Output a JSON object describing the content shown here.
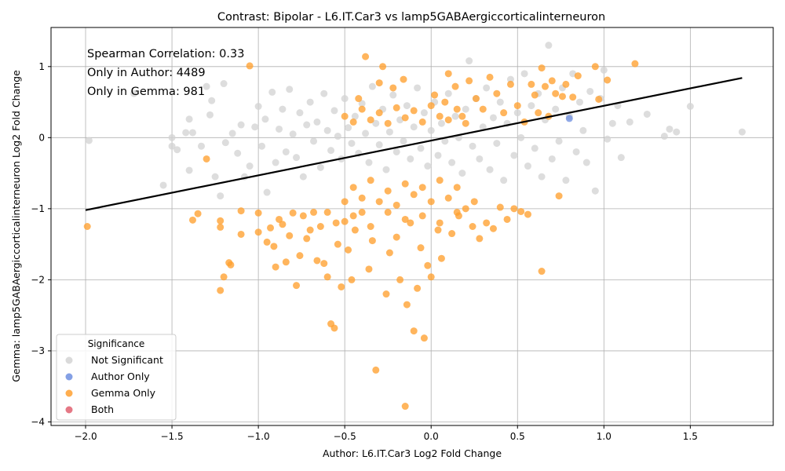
{
  "chart_data": {
    "type": "scatter",
    "title": "Contrast: Bipolar - L6.IT.Car3 vs lamp5GABAergiccorticalinterneuron",
    "xlabel": "Author: L6.IT.Car3 Log2 Fold Change",
    "ylabel": "Gemma: lamp5GABAergiccorticalinterneuron Log2 Fold Change",
    "xlim": [
      -2.2,
      1.98
    ],
    "ylim": [
      -4.05,
      1.55
    ],
    "xticks": [
      "−2.0",
      "−1.5",
      "−1.0",
      "−0.5",
      "0.0",
      "0.5",
      "1.0",
      "1.5"
    ],
    "xtick_values": [
      -2.0,
      -1.5,
      -1.0,
      -0.5,
      0.0,
      0.5,
      1.0,
      1.5
    ],
    "yticks": [
      "−4",
      "−3",
      "−2",
      "−1",
      "0",
      "1"
    ],
    "ytick_values": [
      -4,
      -3,
      -2,
      -1,
      0,
      1
    ],
    "grid": true,
    "annotations": [
      "Spearman Correlation: 0.33",
      "Only in Author: 4489",
      "Only in Gemma: 981"
    ],
    "legend": {
      "title": "Significance",
      "placement": "lower-left",
      "entries": [
        {
          "label": "Not Significant",
          "color": "#d3d3d3"
        },
        {
          "label": "Author Only",
          "color": "#6f8fe0"
        },
        {
          "label": "Gemma Only",
          "color": "#ffa030"
        },
        {
          "label": "Both",
          "color": "#e06070"
        }
      ]
    },
    "regression_line": {
      "x": [
        -2.0,
        1.8
      ],
      "y": [
        -1.02,
        0.84
      ],
      "color": "#000000"
    },
    "series": [
      {
        "name": "Not Significant",
        "color": "#d3d3d3",
        "points": [
          [
            -1.98,
            -0.04
          ],
          [
            -1.72,
            0.62
          ],
          [
            -1.55,
            -0.67
          ],
          [
            -1.5,
            0.0
          ],
          [
            -1.5,
            -0.12
          ],
          [
            -1.47,
            -0.17
          ],
          [
            -1.42,
            0.07
          ],
          [
            -1.4,
            -0.46
          ],
          [
            -1.4,
            0.26
          ],
          [
            -1.38,
            0.07
          ],
          [
            -1.33,
            -0.12
          ],
          [
            -1.3,
            0.72
          ],
          [
            -1.28,
            0.32
          ],
          [
            -1.27,
            0.52
          ],
          [
            -1.25,
            -0.55
          ],
          [
            -1.22,
            -0.82
          ],
          [
            -1.2,
            0.76
          ],
          [
            -1.19,
            -0.07
          ],
          [
            -1.15,
            0.06
          ],
          [
            -1.12,
            -0.22
          ],
          [
            -1.1,
            0.18
          ],
          [
            -1.08,
            -0.55
          ],
          [
            -1.05,
            -0.4
          ],
          [
            -1.02,
            0.15
          ],
          [
            -1.0,
            0.44
          ],
          [
            -0.98,
            -0.12
          ],
          [
            -0.96,
            0.26
          ],
          [
            -0.95,
            -0.77
          ],
          [
            -0.92,
            0.64
          ],
          [
            -0.9,
            -0.35
          ],
          [
            -0.88,
            0.12
          ],
          [
            -0.86,
            0.4
          ],
          [
            -0.84,
            -0.2
          ],
          [
            -0.82,
            0.68
          ],
          [
            -0.8,
            0.05
          ],
          [
            -0.78,
            -0.28
          ],
          [
            -0.76,
            0.35
          ],
          [
            -0.74,
            -0.55
          ],
          [
            -0.72,
            0.18
          ],
          [
            -0.7,
            0.5
          ],
          [
            -0.68,
            -0.05
          ],
          [
            -0.66,
            0.22
          ],
          [
            -0.64,
            -0.42
          ],
          [
            -0.62,
            0.62
          ],
          [
            -0.6,
            0.1
          ],
          [
            -0.58,
            -0.18
          ],
          [
            -0.56,
            0.38
          ],
          [
            -0.54,
            0.02
          ],
          [
            -0.52,
            -0.3
          ],
          [
            -0.5,
            0.55
          ],
          [
            -0.48,
            0.14
          ],
          [
            -0.46,
            -0.08
          ],
          [
            -0.44,
            0.3
          ],
          [
            -0.42,
            -0.22
          ],
          [
            -0.4,
            0.48
          ],
          [
            -0.38,
            0.06
          ],
          [
            -0.36,
            -0.35
          ],
          [
            -0.34,
            0.72
          ],
          [
            -0.32,
            0.2
          ],
          [
            -0.3,
            -0.1
          ],
          [
            -0.28,
            0.4
          ],
          [
            -0.26,
            -0.45
          ],
          [
            -0.24,
            0.08
          ],
          [
            -0.22,
            0.6
          ],
          [
            -0.2,
            -0.2
          ],
          [
            -0.18,
            0.25
          ],
          [
            -0.16,
            -0.05
          ],
          [
            -0.14,
            0.45
          ],
          [
            -0.12,
            -0.3
          ],
          [
            -0.1,
            0.15
          ],
          [
            -0.08,
            0.7
          ],
          [
            -0.06,
            -0.15
          ],
          [
            -0.04,
            0.35
          ],
          [
            -0.02,
            -0.4
          ],
          [
            0.0,
            0.1
          ],
          [
            0.02,
            0.5
          ],
          [
            0.04,
            -0.25
          ],
          [
            0.06,
            0.2
          ],
          [
            0.08,
            -0.05
          ],
          [
            0.1,
            0.62
          ],
          [
            0.12,
            -0.35
          ],
          [
            0.14,
            0.3
          ],
          [
            0.16,
            0.0
          ],
          [
            0.18,
            -0.5
          ],
          [
            0.2,
            0.4
          ],
          [
            0.22,
            1.08
          ],
          [
            0.24,
            -0.12
          ],
          [
            0.26,
            0.55
          ],
          [
            0.28,
            -0.3
          ],
          [
            0.3,
            0.15
          ],
          [
            0.32,
            0.7
          ],
          [
            0.34,
            -0.45
          ],
          [
            0.36,
            0.28
          ],
          [
            0.38,
            -0.08
          ],
          [
            0.4,
            0.5
          ],
          [
            0.42,
            -0.6
          ],
          [
            0.44,
            0.2
          ],
          [
            0.46,
            0.82
          ],
          [
            0.48,
            -0.25
          ],
          [
            0.5,
            0.35
          ],
          [
            0.52,
            0.0
          ],
          [
            0.54,
            0.9
          ],
          [
            0.56,
            -0.4
          ],
          [
            0.58,
            0.45
          ],
          [
            0.6,
            -0.15
          ],
          [
            0.62,
            0.62
          ],
          [
            0.64,
            -0.55
          ],
          [
            0.66,
            0.25
          ],
          [
            0.68,
            1.3
          ],
          [
            0.7,
            -0.3
          ],
          [
            0.72,
            0.4
          ],
          [
            0.74,
            -0.05
          ],
          [
            0.76,
            0.7
          ],
          [
            0.78,
            -0.6
          ],
          [
            0.8,
            0.3
          ],
          [
            0.82,
            0.9
          ],
          [
            0.84,
            -0.2
          ],
          [
            0.86,
            0.5
          ],
          [
            0.88,
            0.1
          ],
          [
            0.9,
            -0.35
          ],
          [
            0.92,
            0.65
          ],
          [
            0.95,
            -0.75
          ],
          [
            0.98,
            0.55
          ],
          [
            1.0,
            0.95
          ],
          [
            1.02,
            -0.02
          ],
          [
            1.05,
            0.2
          ],
          [
            1.08,
            0.45
          ],
          [
            1.1,
            -0.28
          ],
          [
            1.15,
            0.22
          ],
          [
            1.25,
            0.33
          ],
          [
            1.35,
            0.02
          ],
          [
            1.38,
            0.12
          ],
          [
            1.42,
            0.08
          ],
          [
            1.5,
            0.44
          ],
          [
            1.8,
            0.08
          ]
        ]
      },
      {
        "name": "Author Only",
        "color": "#6f8fe0",
        "points": [
          [
            0.8,
            0.27
          ]
        ]
      },
      {
        "name": "Gemma Only",
        "color": "#ffa030",
        "points": [
          [
            -1.99,
            -1.25
          ],
          [
            -1.3,
            -0.3
          ],
          [
            -1.38,
            -1.16
          ],
          [
            -1.35,
            -1.07
          ],
          [
            -1.22,
            -1.17
          ],
          [
            -1.22,
            -1.26
          ],
          [
            -1.22,
            -2.15
          ],
          [
            -1.2,
            -1.96
          ],
          [
            -1.17,
            -1.76
          ],
          [
            -1.16,
            -1.79
          ],
          [
            -1.1,
            -1.36
          ],
          [
            -1.1,
            -1.03
          ],
          [
            -1.05,
            1.01
          ],
          [
            -1.0,
            -1.06
          ],
          [
            -1.0,
            -1.33
          ],
          [
            -0.95,
            -1.47
          ],
          [
            -0.93,
            -1.27
          ],
          [
            -0.91,
            -1.53
          ],
          [
            -0.9,
            -1.82
          ],
          [
            -0.88,
            -1.15
          ],
          [
            -0.86,
            -1.22
          ],
          [
            -0.84,
            -1.75
          ],
          [
            -0.82,
            -1.38
          ],
          [
            -0.8,
            -1.06
          ],
          [
            -0.78,
            -2.08
          ],
          [
            -0.76,
            -1.66
          ],
          [
            -0.74,
            -1.1
          ],
          [
            -0.72,
            -1.42
          ],
          [
            -0.7,
            -1.3
          ],
          [
            -0.68,
            -1.05
          ],
          [
            -0.66,
            -1.73
          ],
          [
            -0.64,
            -1.25
          ],
          [
            -0.62,
            -1.77
          ],
          [
            -0.6,
            -1.96
          ],
          [
            -0.58,
            -2.62
          ],
          [
            -0.56,
            -2.68
          ],
          [
            -0.54,
            -1.5
          ],
          [
            -0.52,
            -2.1
          ],
          [
            -0.5,
            -1.18
          ],
          [
            -0.48,
            -1.58
          ],
          [
            -0.46,
            -2.0
          ],
          [
            -0.44,
            -1.3
          ],
          [
            -0.42,
            0.55
          ],
          [
            -0.4,
            -1.05
          ],
          [
            -0.38,
            1.14
          ],
          [
            -0.36,
            -1.85
          ],
          [
            -0.34,
            -1.45
          ],
          [
            -0.32,
            -3.27
          ],
          [
            -0.3,
            0.77
          ],
          [
            -0.28,
            1.0
          ],
          [
            -0.26,
            -2.2
          ],
          [
            -0.24,
            -1.62
          ],
          [
            -0.22,
            0.7
          ],
          [
            -0.2,
            -1.4
          ],
          [
            -0.18,
            -2.0
          ],
          [
            -0.16,
            0.82
          ],
          [
            -0.15,
            -3.78
          ],
          [
            -0.14,
            -2.35
          ],
          [
            -0.12,
            -1.2
          ],
          [
            -0.1,
            -2.72
          ],
          [
            -0.08,
            -2.12
          ],
          [
            -0.06,
            -1.55
          ],
          [
            -0.04,
            -2.82
          ],
          [
            -0.02,
            -1.8
          ],
          [
            0.0,
            -1.96
          ],
          [
            0.02,
            0.6
          ],
          [
            0.04,
            -1.3
          ],
          [
            0.06,
            -1.7
          ],
          [
            0.08,
            0.5
          ],
          [
            0.1,
            0.9
          ],
          [
            0.12,
            -1.35
          ],
          [
            0.14,
            0.72
          ],
          [
            0.16,
            -1.1
          ],
          [
            0.18,
            0.3
          ],
          [
            0.2,
            -1.0
          ],
          [
            0.22,
            0.8
          ],
          [
            0.24,
            -1.25
          ],
          [
            0.26,
            0.55
          ],
          [
            0.28,
            -1.42
          ],
          [
            0.3,
            0.4
          ],
          [
            0.32,
            -1.2
          ],
          [
            0.34,
            0.85
          ],
          [
            0.36,
            -1.28
          ],
          [
            0.38,
            0.62
          ],
          [
            0.4,
            -0.98
          ],
          [
            0.42,
            0.35
          ],
          [
            0.44,
            -1.15
          ],
          [
            0.46,
            0.75
          ],
          [
            0.48,
            -1.0
          ],
          [
            0.5,
            0.45
          ],
          [
            0.52,
            -1.04
          ],
          [
            0.54,
            0.22
          ],
          [
            0.56,
            -1.08
          ],
          [
            0.58,
            0.75
          ],
          [
            0.6,
            0.6
          ],
          [
            0.62,
            0.35
          ],
          [
            0.64,
            0.98
          ],
          [
            0.64,
            -1.88
          ],
          [
            0.66,
            0.72
          ],
          [
            0.68,
            0.3
          ],
          [
            0.7,
            0.8
          ],
          [
            0.72,
            0.62
          ],
          [
            0.74,
            -0.82
          ],
          [
            0.76,
            0.58
          ],
          [
            0.78,
            0.75
          ],
          [
            0.82,
            0.57
          ],
          [
            0.85,
            0.87
          ],
          [
            0.95,
            1.0
          ],
          [
            0.97,
            0.54
          ],
          [
            1.02,
            0.81
          ],
          [
            1.18,
            1.04
          ],
          [
            -0.5,
            -0.9
          ],
          [
            -0.45,
            -0.7
          ],
          [
            -0.4,
            -0.85
          ],
          [
            -0.35,
            -0.6
          ],
          [
            -0.3,
            -0.9
          ],
          [
            -0.25,
            -0.75
          ],
          [
            -0.2,
            -0.95
          ],
          [
            -0.15,
            -0.65
          ],
          [
            -0.1,
            -0.8
          ],
          [
            -0.05,
            -0.7
          ],
          [
            0.0,
            -0.9
          ],
          [
            0.05,
            -0.6
          ],
          [
            0.1,
            -0.85
          ],
          [
            0.15,
            -0.7
          ],
          [
            -0.5,
            0.3
          ],
          [
            -0.45,
            0.22
          ],
          [
            -0.4,
            0.4
          ],
          [
            -0.35,
            0.25
          ],
          [
            -0.3,
            0.35
          ],
          [
            -0.25,
            0.2
          ],
          [
            -0.2,
            0.42
          ],
          [
            -0.15,
            0.28
          ],
          [
            -0.1,
            0.38
          ],
          [
            -0.05,
            0.22
          ],
          [
            0.0,
            0.45
          ],
          [
            0.05,
            0.3
          ],
          [
            0.1,
            0.25
          ],
          [
            0.15,
            0.4
          ],
          [
            0.2,
            0.2
          ],
          [
            -0.6,
            -1.05
          ],
          [
            -0.55,
            -1.2
          ],
          [
            -0.45,
            -1.1
          ],
          [
            -0.35,
            -1.25
          ],
          [
            -0.25,
            -1.05
          ],
          [
            -0.15,
            -1.15
          ],
          [
            -0.05,
            -1.1
          ],
          [
            0.05,
            -1.2
          ],
          [
            0.15,
            -1.05
          ],
          [
            0.25,
            -0.9
          ]
        ]
      },
      {
        "name": "Both",
        "color": "#e06070",
        "points": []
      }
    ]
  }
}
